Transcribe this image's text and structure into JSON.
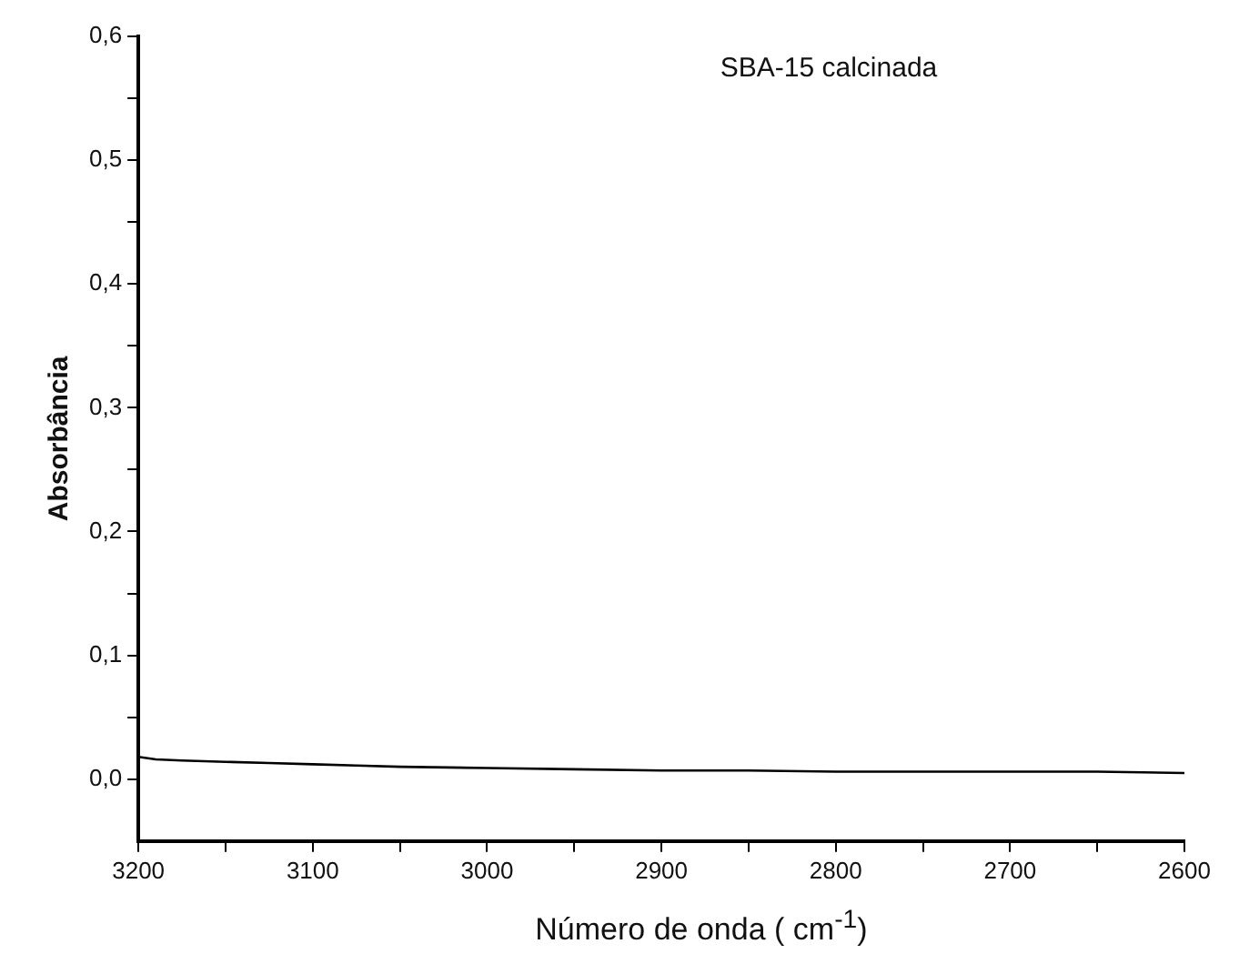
{
  "chart_data": {
    "type": "line",
    "xlabel": "Número de onda ( cm$^{-1}$)",
    "ylabel": "Absorbância",
    "annotations": [
      "SBA-15 calcinada"
    ],
    "x": [
      3200,
      3190,
      3175,
      3150,
      3125,
      3100,
      3075,
      3050,
      3000,
      2950,
      2900,
      2850,
      2800,
      2750,
      2700,
      2650,
      2600
    ],
    "series": [
      {
        "color": "#000000",
        "values": [
          0.018,
          0.016,
          0.015,
          0.014,
          0.013,
          0.012,
          0.011,
          0.01,
          0.009,
          0.008,
          0.007,
          0.007,
          0.006,
          0.006,
          0.006,
          0.006,
          0.005
        ]
      }
    ],
    "xlim": [
      3200,
      2600
    ],
    "ylim": [
      -0.05,
      0.6
    ],
    "xticks": [
      3200,
      {
        "value": 3150,
        "label": null
      },
      3100,
      {
        "value": 3050,
        "label": null
      },
      3000,
      {
        "value": 2950,
        "label": null
      },
      2900,
      {
        "value": 2850,
        "label": null
      },
      2800,
      {
        "value": 2750,
        "label": null
      },
      2700,
      {
        "value": 2650,
        "label": null
      },
      2600
    ],
    "yticks": [
      {
        "value": 0,
        "label": "0,0"
      },
      {
        "value": 0.05,
        "label": null
      },
      {
        "value": 0.1,
        "label": "0,1"
      },
      {
        "value": 0.15,
        "label": null
      },
      {
        "value": 0.2,
        "label": "0,2"
      },
      {
        "value": 0.25,
        "label": null
      },
      {
        "value": 0.3,
        "label": "0,3"
      },
      {
        "value": 0.35,
        "label": null
      },
      {
        "value": 0.4,
        "label": "0,4"
      },
      {
        "value": 0.45,
        "label": null
      },
      {
        "value": 0.5,
        "label": "0,5"
      },
      {
        "value": 0.55,
        "label": null
      },
      {
        "value": 0.6,
        "label": "0,6"
      }
    ],
    "grid": false,
    "legend": false,
    "marker": "none",
    "line_style": "solid"
  }
}
